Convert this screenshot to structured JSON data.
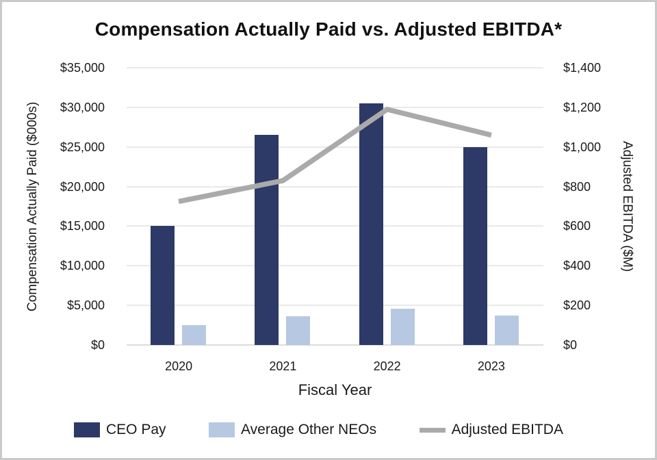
{
  "chart_data": {
    "type": "bar",
    "subtype": "grouped-bar-with-line-combo-dual-axis",
    "title": "Compensation Actually Paid vs. Adjusted EBITDA*",
    "categories": [
      "2020",
      "2021",
      "2022",
      "2023"
    ],
    "series": [
      {
        "name": "CEO Pay",
        "type": "bar",
        "axis": "left",
        "color": "#2d3a67",
        "values": [
          15000,
          26500,
          30500,
          25000
        ]
      },
      {
        "name": "Average Other NEOs",
        "type": "bar",
        "axis": "left",
        "color": "#b7c9e2",
        "values": [
          2500,
          3600,
          4600,
          3700
        ]
      },
      {
        "name": "Adjusted EBITDA",
        "type": "line",
        "axis": "right",
        "color": "#aaaaaa",
        "values": [
          725,
          830,
          1190,
          1060
        ]
      }
    ],
    "xlabel": "Fiscal Year",
    "left_axis": {
      "title": "Compensation Actually Paid ($000s)",
      "min": 0,
      "max": 35000,
      "step": 5000,
      "tick_prefix": "$",
      "tick_labels": [
        "$0",
        "$5,000",
        "$10,000",
        "$15,000",
        "$20,000",
        "$25,000",
        "$30,000",
        "$35,000"
      ]
    },
    "right_axis": {
      "title": "Adjusted EBITDA ($M)",
      "min": 0,
      "max": 1400,
      "step": 200,
      "tick_prefix": "$",
      "tick_labels": [
        "$0",
        "$200",
        "$400",
        "$600",
        "$800",
        "$1,000",
        "$1,200",
        "$1,400"
      ]
    },
    "grid": true,
    "legend_position": "bottom"
  },
  "style": {
    "gridline_color": "#e9e9e9",
    "baseline_color": "#dcdcdc",
    "frame_border_color": "#c9c9c9",
    "title_color": "#111111"
  }
}
